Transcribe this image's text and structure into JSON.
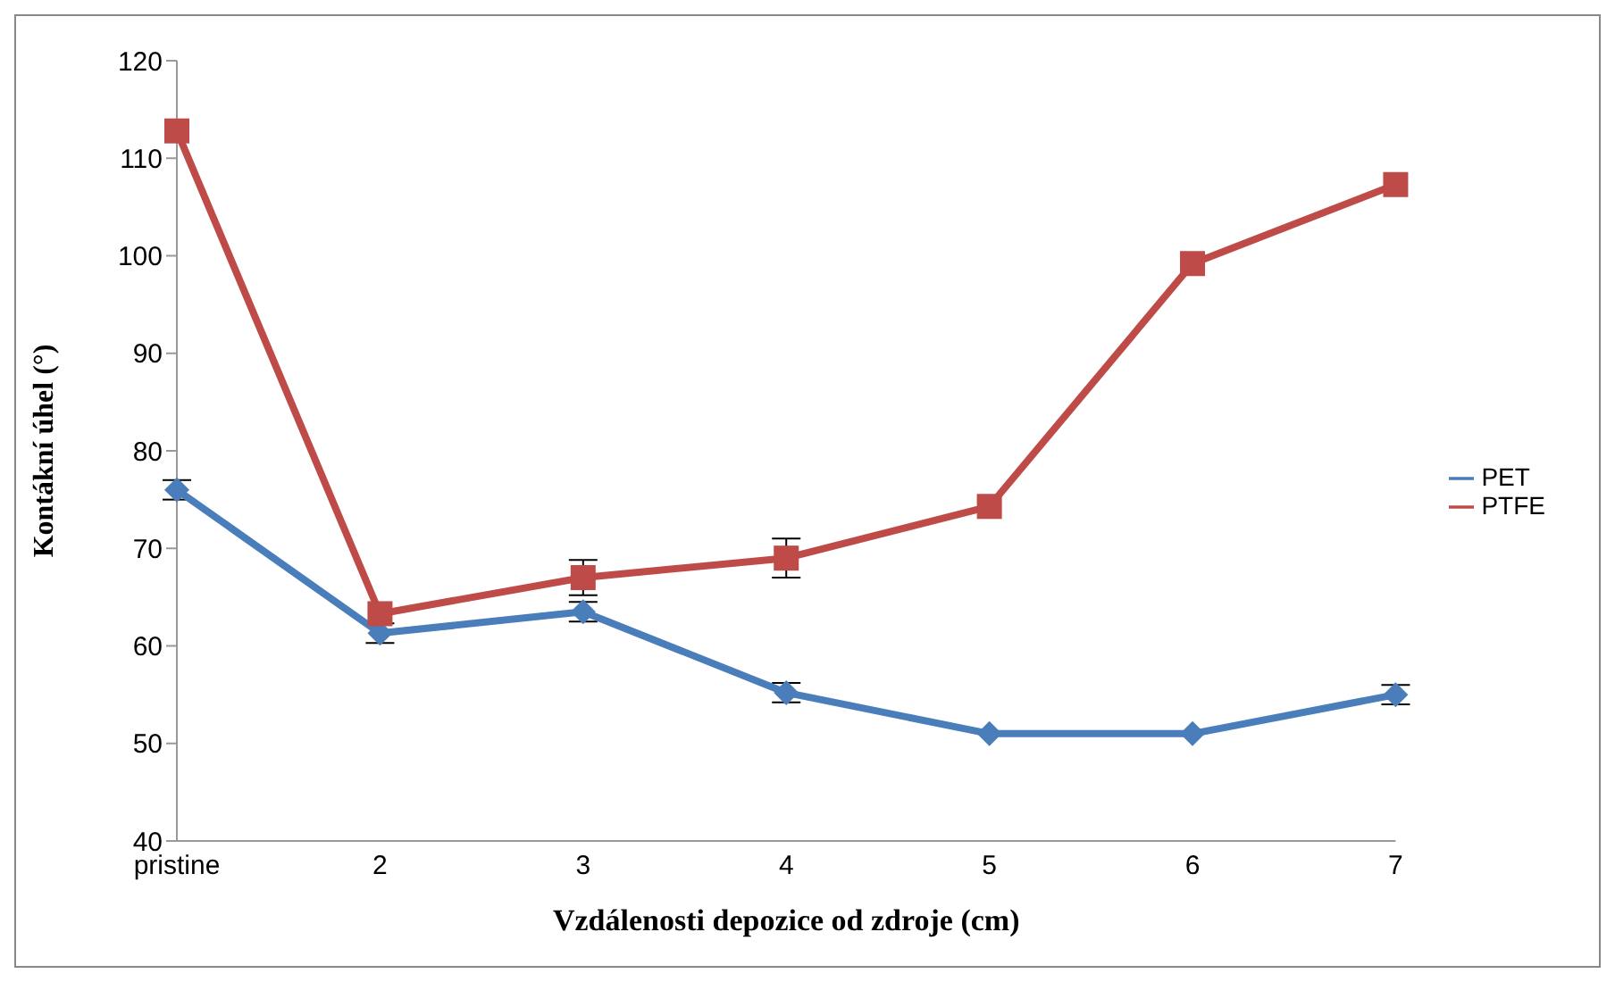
{
  "chart_data": {
    "type": "line",
    "xlabel": "Vzdálenosti depozice od zdroje (cm)",
    "ylabel": "Kontákní úhel (°)",
    "categories": [
      "pristine",
      "2",
      "3",
      "4",
      "5",
      "6",
      "7"
    ],
    "series": [
      {
        "name": "PET",
        "color": "#4a7ebb",
        "marker": "diamond",
        "values": [
          76,
          61.3,
          63.5,
          55.2,
          51,
          51,
          55
        ],
        "errors": [
          1,
          1,
          1,
          1,
          null,
          null,
          1
        ]
      },
      {
        "name": "PTFE",
        "color": "#be4b48",
        "marker": "square",
        "values": [
          112.8,
          63.3,
          67,
          69,
          74.3,
          99.2,
          107.3
        ],
        "errors": [
          null,
          null,
          1.8,
          2,
          null,
          null,
          null
        ]
      }
    ],
    "ylim": [
      40,
      120
    ],
    "yticks": [
      40,
      50,
      60,
      70,
      80,
      90,
      100,
      110,
      120
    ],
    "grid": false,
    "legend": "right"
  }
}
